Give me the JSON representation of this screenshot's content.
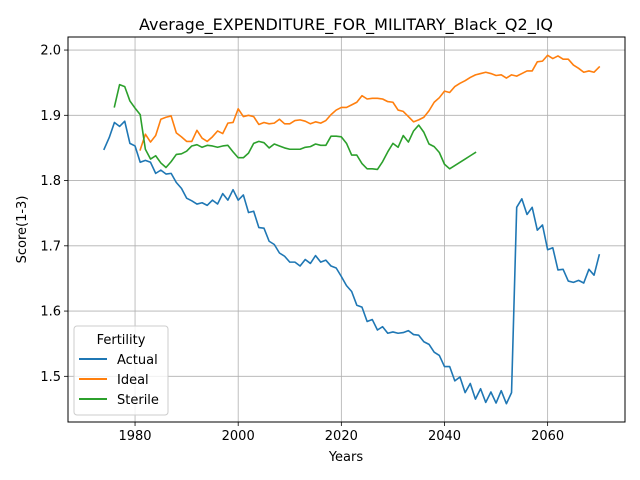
{
  "chart_data": {
    "type": "line",
    "title": "Average_EXPENDITURE_FOR_MILITARY_Black_Q2_IQ",
    "xlabel": "Years",
    "ylabel": "Score(1-3)",
    "xlim": [
      1967,
      2075
    ],
    "ylim": [
      1.43,
      2.02
    ],
    "xticks": [
      1980,
      2000,
      2020,
      2040,
      2060
    ],
    "yticks": [
      1.5,
      1.6,
      1.7,
      1.8,
      1.9,
      2.0
    ],
    "xtick_labels": [
      "1980",
      "2000",
      "2020",
      "2040",
      "2060"
    ],
    "ytick_labels": [
      "1.5",
      "1.6",
      "1.7",
      "1.8",
      "1.9",
      "2.0"
    ],
    "grid": true,
    "legend": {
      "title": "Fertility",
      "position": "lower-left"
    },
    "series": [
      {
        "name": "Actual",
        "color": "#1f77b4",
        "x": [
          1974,
          1975,
          1976,
          1977,
          1978,
          1979,
          1980,
          1981,
          1982,
          1983,
          1984,
          1985,
          1986,
          1987,
          1988,
          1989,
          1990,
          1991,
          1992,
          1993,
          1994,
          1995,
          1996,
          1997,
          1998,
          1999,
          2000,
          2001,
          2002,
          2003,
          2004,
          2005,
          2006,
          2007,
          2008,
          2009,
          2010,
          2011,
          2012,
          2013,
          2014,
          2015,
          2016,
          2017,
          2018,
          2019,
          2020,
          2021,
          2022,
          2023,
          2024,
          2025,
          2026,
          2027,
          2028,
          2029,
          2030,
          2031,
          2032,
          2033,
          2034,
          2035,
          2036,
          2037,
          2038,
          2039,
          2040,
          2041,
          2042,
          2043,
          2044,
          2045,
          2046,
          2047,
          2048,
          2049,
          2050,
          2051,
          2052,
          2053,
          2054,
          2055,
          2056,
          2057,
          2058,
          2059,
          2060,
          2061,
          2062,
          2063,
          2064,
          2065,
          2066,
          2067,
          2068,
          2069,
          2070
        ],
        "y": [
          1.848,
          1.866,
          1.889,
          1.883,
          1.891,
          1.857,
          1.853,
          1.828,
          1.831,
          1.828,
          1.811,
          1.816,
          1.81,
          1.811,
          1.797,
          1.788,
          1.773,
          1.769,
          1.764,
          1.766,
          1.762,
          1.77,
          1.764,
          1.78,
          1.77,
          1.786,
          1.77,
          1.778,
          1.751,
          1.753,
          1.728,
          1.727,
          1.707,
          1.702,
          1.689,
          1.684,
          1.675,
          1.675,
          1.669,
          1.679,
          1.673,
          1.685,
          1.675,
          1.678,
          1.669,
          1.666,
          1.653,
          1.639,
          1.63,
          1.609,
          1.606,
          1.584,
          1.587,
          1.571,
          1.576,
          1.566,
          1.568,
          1.566,
          1.567,
          1.57,
          1.564,
          1.563,
          1.553,
          1.549,
          1.537,
          1.532,
          1.515,
          1.515,
          1.493,
          1.499,
          1.475,
          1.489,
          1.465,
          1.481,
          1.46,
          1.476,
          1.459,
          1.478,
          1.458,
          1.475,
          1.759,
          1.772,
          1.748,
          1.759,
          1.724,
          1.732,
          1.694,
          1.697,
          1.663,
          1.664,
          1.646,
          1.644,
          1.647,
          1.643,
          1.664,
          1.655,
          1.686
        ]
      },
      {
        "name": "Ideal",
        "color": "#ff7f0e",
        "x": [
          1981,
          1982,
          1983,
          1984,
          1985,
          1986,
          1987,
          1988,
          1989,
          1990,
          1991,
          1992,
          1993,
          1994,
          1995,
          1996,
          1997,
          1998,
          1999,
          2000,
          2001,
          2002,
          2003,
          2004,
          2005,
          2006,
          2007,
          2008,
          2009,
          2010,
          2011,
          2012,
          2013,
          2014,
          2015,
          2016,
          2017,
          2018,
          2019,
          2020,
          2021,
          2022,
          2023,
          2024,
          2025,
          2026,
          2027,
          2028,
          2029,
          2030,
          2031,
          2032,
          2033,
          2034,
          2035,
          2036,
          2037,
          2038,
          2039,
          2040,
          2041,
          2042,
          2043,
          2044,
          2045,
          2046,
          2047,
          2048,
          2049,
          2050,
          2051,
          2052,
          2053,
          2054,
          2055,
          2056,
          2057,
          2058,
          2059,
          2060,
          2061,
          2062,
          2063,
          2064,
          2065,
          2066,
          2067,
          2068,
          2069,
          2070
        ],
        "y": [
          1.847,
          1.871,
          1.859,
          1.869,
          1.894,
          1.897,
          1.899,
          1.873,
          1.867,
          1.86,
          1.86,
          1.877,
          1.865,
          1.86,
          1.867,
          1.876,
          1.872,
          1.888,
          1.889,
          1.91,
          1.898,
          1.9,
          1.898,
          1.886,
          1.889,
          1.887,
          1.888,
          1.894,
          1.887,
          1.887,
          1.892,
          1.893,
          1.891,
          1.887,
          1.89,
          1.888,
          1.892,
          1.901,
          1.908,
          1.912,
          1.912,
          1.916,
          1.92,
          1.93,
          1.925,
          1.926,
          1.926,
          1.925,
          1.921,
          1.92,
          1.908,
          1.906,
          1.898,
          1.89,
          1.893,
          1.897,
          1.907,
          1.92,
          1.927,
          1.937,
          1.935,
          1.944,
          1.949,
          1.953,
          1.958,
          1.962,
          1.964,
          1.966,
          1.964,
          1.961,
          1.962,
          1.957,
          1.962,
          1.96,
          1.964,
          1.968,
          1.968,
          1.982,
          1.983,
          1.992,
          1.987,
          1.991,
          1.986,
          1.986,
          1.977,
          1.972,
          1.966,
          1.968,
          1.966,
          1.974
        ]
      },
      {
        "name": "Sterile",
        "color": "#2ca02c",
        "x": [
          1976,
          1977,
          1978,
          1979,
          1980,
          1981,
          1982,
          1983,
          1984,
          1985,
          1986,
          1987,
          1988,
          1989,
          1990,
          1991,
          1992,
          1993,
          1994,
          1995,
          1996,
          1997,
          1998,
          1999,
          2000,
          2001,
          2002,
          2003,
          2004,
          2005,
          2006,
          2007,
          2008,
          2009,
          2010,
          2011,
          2012,
          2013,
          2014,
          2015,
          2016,
          2017,
          2018,
          2019,
          2020,
          2021,
          2022,
          2023,
          2024,
          2025,
          2026,
          2027,
          2028,
          2029,
          2030,
          2031,
          2032,
          2033,
          2034,
          2035,
          2036,
          2037,
          2038,
          2039,
          2040,
          2041,
          2042,
          2043,
          2044,
          2045,
          2046
        ],
        "y": [
          1.913,
          1.947,
          1.944,
          1.922,
          1.911,
          1.901,
          1.848,
          1.833,
          1.838,
          1.827,
          1.82,
          1.829,
          1.84,
          1.841,
          1.845,
          1.853,
          1.855,
          1.851,
          1.854,
          1.853,
          1.851,
          1.853,
          1.854,
          1.844,
          1.835,
          1.835,
          1.842,
          1.857,
          1.86,
          1.858,
          1.85,
          1.856,
          1.853,
          1.85,
          1.848,
          1.848,
          1.848,
          1.851,
          1.852,
          1.856,
          1.854,
          1.854,
          1.868,
          1.868,
          1.867,
          1.857,
          1.839,
          1.839,
          1.826,
          1.818,
          1.818,
          1.817,
          1.829,
          1.844,
          1.857,
          1.851,
          1.869,
          1.859,
          1.876,
          1.885,
          1.874,
          1.856,
          1.852,
          1.843,
          1.825,
          1.818,
          1.823,
          1.828,
          1.833,
          1.838,
          1.843
        ]
      }
    ]
  }
}
